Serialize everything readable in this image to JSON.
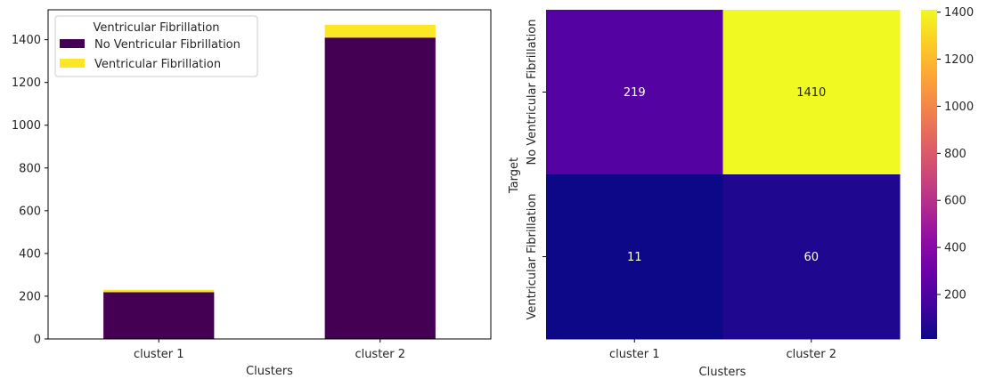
{
  "chart_data": [
    {
      "type": "bar",
      "stacked": true,
      "categories": [
        "cluster 1",
        "cluster 2"
      ],
      "series": [
        {
          "name": "No Ventricular Fibrillation",
          "values": [
            219,
            1410
          ],
          "color": "#440154"
        },
        {
          "name": "Ventricular Fibrillation",
          "values": [
            11,
            60
          ],
          "color": "#fde725"
        }
      ],
      "xlabel": "Clusters",
      "ylabel": "",
      "ylim": [
        0,
        1540
      ],
      "yticks": [
        0,
        200,
        400,
        600,
        800,
        1000,
        1200,
        1400
      ],
      "grid": false,
      "legend": {
        "title": "Ventricular Fibrillation",
        "placement": "top-left"
      }
    },
    {
      "type": "heatmap",
      "x_categories": [
        "cluster 1",
        "cluster 2"
      ],
      "y_categories": [
        "No Ventricular Fibrillation",
        "Ventricular Fibrillation"
      ],
      "values": [
        [
          219,
          1410
        ],
        [
          11,
          60
        ]
      ],
      "xlabel": "Clusters",
      "ylabel": "Target",
      "colormap": "plasma",
      "colorbar": {
        "min": 11,
        "max": 1410,
        "ticks": [
          200,
          400,
          600,
          800,
          1000,
          1200,
          1400
        ]
      }
    }
  ]
}
